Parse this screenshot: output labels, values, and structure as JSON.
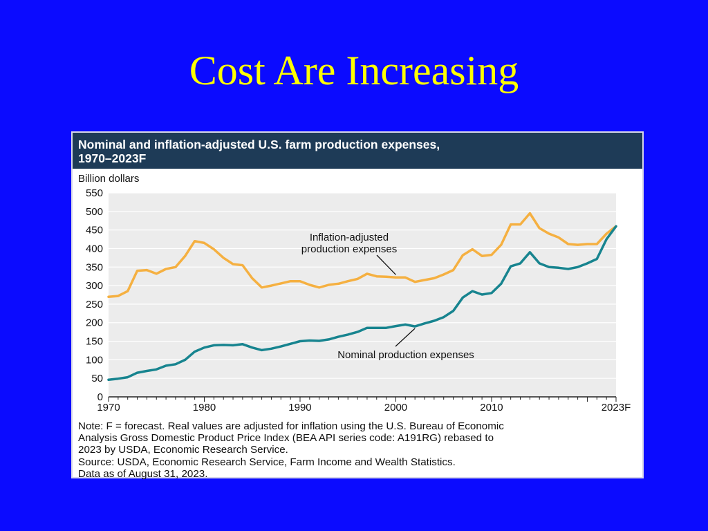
{
  "slide": {
    "title": "Cost Are Increasing"
  },
  "chart_data": {
    "type": "line",
    "title_lines": [
      "Nominal and inflation-adjusted U.S. farm production expenses,",
      "1970–2023F"
    ],
    "ylabel": "Billion dollars",
    "xlabel": "",
    "ylim": [
      0,
      550
    ],
    "xlim": [
      1970,
      2023
    ],
    "yticks": [
      0,
      50,
      100,
      150,
      200,
      250,
      300,
      350,
      400,
      450,
      500,
      550
    ],
    "xticks": [
      {
        "value": 1970,
        "label": "1970"
      },
      {
        "value": 1980,
        "label": "1980"
      },
      {
        "value": 1990,
        "label": "1990"
      },
      {
        "value": 2000,
        "label": "2000"
      },
      {
        "value": 2010,
        "label": "2010"
      },
      {
        "value": 2023,
        "label": "2023F"
      }
    ],
    "grid": true,
    "x": [
      1970,
      1971,
      1972,
      1973,
      1974,
      1975,
      1976,
      1977,
      1978,
      1979,
      1980,
      1981,
      1982,
      1983,
      1984,
      1985,
      1986,
      1987,
      1988,
      1989,
      1990,
      1991,
      1992,
      1993,
      1994,
      1995,
      1996,
      1997,
      1998,
      1999,
      2000,
      2001,
      2002,
      2003,
      2004,
      2005,
      2006,
      2007,
      2008,
      2009,
      2010,
      2011,
      2012,
      2013,
      2014,
      2015,
      2016,
      2017,
      2018,
      2019,
      2020,
      2021,
      2022,
      2023
    ],
    "series": [
      {
        "name": "Inflation-adjusted production expenses",
        "color": "#f5b041",
        "values": [
          270,
          272,
          285,
          340,
          342,
          332,
          345,
          350,
          380,
          420,
          415,
          398,
          375,
          358,
          355,
          320,
          295,
          300,
          306,
          312,
          312,
          302,
          295,
          302,
          305,
          312,
          318,
          332,
          325,
          324,
          322,
          322,
          310,
          315,
          320,
          330,
          342,
          382,
          398,
          380,
          383,
          410,
          465,
          465,
          495,
          455,
          440,
          430,
          412,
          410,
          412,
          412,
          440,
          460
        ]
      },
      {
        "name": "Nominal production expenses",
        "color": "#17848f",
        "values": [
          46,
          49,
          53,
          65,
          70,
          74,
          84,
          88,
          100,
          122,
          133,
          139,
          140,
          139,
          142,
          133,
          126,
          130,
          136,
          143,
          150,
          152,
          151,
          155,
          162,
          168,
          175,
          186,
          186,
          186,
          191,
          195,
          190,
          198,
          205,
          215,
          232,
          268,
          285,
          276,
          280,
          305,
          352,
          360,
          390,
          360,
          350,
          348,
          345,
          350,
          360,
          372,
          425,
          460
        ]
      }
    ],
    "annotations": [
      {
        "text_lines": [
          "Inflation-adjusted",
          "production expenses"
        ],
        "target_year": 2000,
        "target_value": 322
      },
      {
        "text_lines": [
          "Nominal production expenses"
        ],
        "target_year": 2002,
        "target_value": 192
      }
    ],
    "note_lines": [
      "Note: F = forecast. Real values are adjusted for inflation using the U.S. Bureau of Economic",
      "Analysis Gross Domestic Product Price Index (BEA API series code: A191RG) rebased to",
      "2023 by USDA, Economic Research Service.",
      "Source: USDA, Economic Research Service, Farm Income and Wealth Statistics.",
      "Data as of August 31, 2023."
    ]
  }
}
